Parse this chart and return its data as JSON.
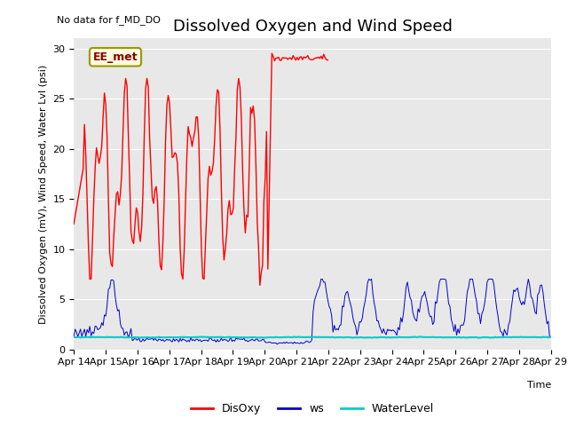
{
  "title": "Dissolved Oxygen and Wind Speed",
  "subtitle": "No data for f_MD_DO",
  "xlabel": "Time",
  "ylabel": "Dissolved Oxygen (mV), Wind Speed, Water Lvl (psi)",
  "annotation": "EE_met",
  "ylim": [
    0,
    31
  ],
  "yticks": [
    0,
    5,
    10,
    15,
    20,
    25,
    30
  ],
  "xtick_labels": [
    "Apr 14",
    "Apr 15",
    "Apr 16",
    "Apr 17",
    "Apr 18",
    "Apr 19",
    "Apr 20",
    "Apr 21",
    "Apr 22",
    "Apr 23",
    "Apr 24",
    "Apr 25",
    "Apr 26",
    "Apr 27",
    "Apr 28",
    "Apr 29"
  ],
  "fig_background": "#ffffff",
  "plot_background": "#e8e8e8",
  "disoxy_color": "#ff0000",
  "ws_color": "#0000cc",
  "waterlevel_color": "#00cccc",
  "legend_labels": [
    "DisOxy",
    "ws",
    "WaterLevel"
  ],
  "title_fontsize": 13,
  "label_fontsize": 8,
  "tick_fontsize": 8,
  "annotation_fontsize": 9
}
